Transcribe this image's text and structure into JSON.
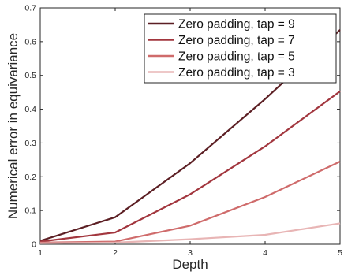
{
  "chart_data": {
    "type": "line",
    "xlabel": "Depth",
    "ylabel": "Numerical error in equivariance",
    "xlim": [
      1,
      5
    ],
    "ylim": [
      0,
      0.7
    ],
    "xticks": [
      "1",
      "2",
      "3",
      "4",
      "5"
    ],
    "yticks": [
      "0",
      "0.1",
      "0.2",
      "0.3",
      "0.4",
      "0.5",
      "0.6",
      "0.7"
    ],
    "x": [
      1,
      2,
      3,
      4,
      5
    ],
    "grid": false,
    "legend_position": "top-right",
    "series": [
      {
        "name": "Zero padding, tap = 9",
        "color": "#5c1f24",
        "values": [
          0.01,
          0.08,
          0.24,
          0.43,
          0.635
        ]
      },
      {
        "name": "Zero padding, tap = 7",
        "color": "#a2363e",
        "values": [
          0.008,
          0.035,
          0.148,
          0.29,
          0.453
        ]
      },
      {
        "name": "Zero padding, tap = 5",
        "color": "#cf6b6b",
        "values": [
          0.005,
          0.008,
          0.055,
          0.14,
          0.245
        ]
      },
      {
        "name": "Zero padding, tap = 3",
        "color": "#e8b5b5",
        "values": [
          0.003,
          0.005,
          0.015,
          0.028,
          0.062
        ]
      }
    ]
  }
}
